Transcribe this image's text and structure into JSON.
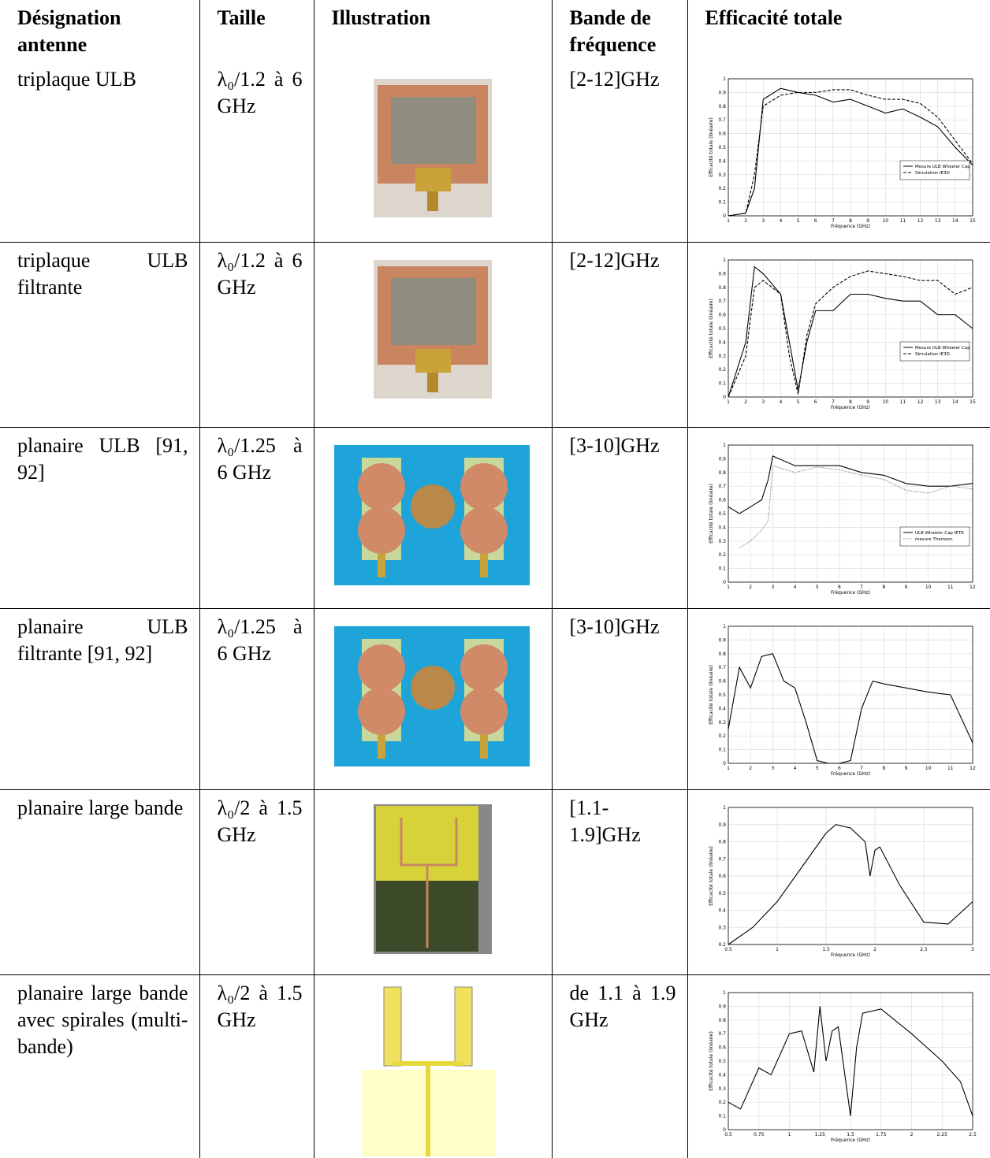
{
  "table": {
    "header": [
      "Désignation antenne",
      "Taille",
      "Illustration",
      "Bande de fréquence",
      "Efficacité totale"
    ],
    "rows": [
      {
        "designation": "triplaque ULB",
        "size": "λ₀/1.2 à 6 GHz",
        "band": "[2-12]GHz",
        "chart": {
          "type": "line",
          "xlabel": "Fréquence (GHz)",
          "ylabel": "Efficacité totale (linéaire)",
          "xlim": [
            1,
            15
          ],
          "xticks": [
            1,
            2,
            3,
            4,
            5,
            6,
            7,
            8,
            9,
            10,
            11,
            12,
            13,
            14,
            15
          ],
          "ylim": [
            0,
            1
          ],
          "yticks": [
            0,
            0.1,
            0.2,
            0.3,
            0.4,
            0.5,
            0.6,
            0.7,
            0.8,
            0.9,
            1
          ],
          "grid": true,
          "legend": "lower right",
          "x": [
            1,
            2,
            2.5,
            3,
            4,
            5,
            6,
            7,
            8,
            9,
            10,
            11,
            12,
            13,
            14,
            15
          ],
          "series": [
            {
              "name": "Mesure ULB Wheeler Cap",
              "color": "#000000",
              "dash": "solid",
              "values": [
                0,
                0.02,
                0.2,
                0.85,
                0.93,
                0.9,
                0.88,
                0.83,
                0.85,
                0.8,
                0.75,
                0.78,
                0.72,
                0.65,
                0.5,
                0.37
              ]
            },
            {
              "name": "Simulation IE3D",
              "color": "#000000",
              "dash": "dashed",
              "values": [
                0,
                0.02,
                0.3,
                0.8,
                0.88,
                0.9,
                0.9,
                0.92,
                0.92,
                0.88,
                0.85,
                0.85,
                0.82,
                0.72,
                0.55,
                0.38
              ]
            }
          ]
        }
      },
      {
        "designation": "triplaque ULB filtrante",
        "size": "λ₀/1.2 à 6 GHz",
        "band": "[2-12]GHz",
        "chart": {
          "type": "line",
          "xlabel": "Fréquence (GHz)",
          "ylabel": "Efficacité totale (linéaire)",
          "xlim": [
            1,
            15
          ],
          "xticks": [
            1,
            2,
            3,
            4,
            5,
            6,
            7,
            8,
            9,
            10,
            11,
            12,
            13,
            14,
            15
          ],
          "ylim": [
            0,
            1
          ],
          "yticks": [
            0,
            0.1,
            0.2,
            0.3,
            0.4,
            0.5,
            0.6,
            0.7,
            0.8,
            0.9,
            1
          ],
          "grid": true,
          "legend": "lower right",
          "x": [
            1,
            2,
            2.5,
            3,
            4,
            4.5,
            5,
            5.5,
            6,
            7,
            8,
            9,
            10,
            11,
            12,
            13,
            14,
            15
          ],
          "series": [
            {
              "name": "Mesure ULB Wheeler Cap",
              "color": "#000000",
              "dash": "solid",
              "values": [
                0,
                0.4,
                0.95,
                0.9,
                0.75,
                0.4,
                0.05,
                0.4,
                0.63,
                0.63,
                0.75,
                0.75,
                0.72,
                0.7,
                0.7,
                0.6,
                0.6,
                0.5
              ]
            },
            {
              "name": "Simulation IE3D",
              "color": "#000000",
              "dash": "dashed",
              "values": [
                0,
                0.3,
                0.8,
                0.85,
                0.75,
                0.3,
                0.02,
                0.45,
                0.68,
                0.8,
                0.88,
                0.92,
                0.9,
                0.88,
                0.85,
                0.85,
                0.75,
                0.8
              ]
            }
          ]
        }
      },
      {
        "designation": "planaire ULB [91, 92]",
        "size": "λ₀/1.25 à 6 GHz",
        "band": "[3-10]GHz",
        "chart": {
          "type": "line",
          "xlabel": "Fréquence (GHz)",
          "ylabel": "Efficacité totale (linéaire)",
          "xlim": [
            1,
            12
          ],
          "xticks": [
            1,
            2,
            3,
            4,
            5,
            6,
            7,
            8,
            9,
            10,
            11,
            12
          ],
          "ylim": [
            0,
            1
          ],
          "yticks": [
            0,
            0.1,
            0.2,
            0.3,
            0.4,
            0.5,
            0.6,
            0.7,
            0.8,
            0.9,
            1
          ],
          "grid": true,
          "legend": "lower right",
          "x": [
            1,
            1.5,
            2,
            2.5,
            2.8,
            3,
            4,
            5,
            6,
            7,
            8,
            9,
            10,
            11,
            12
          ],
          "series": [
            {
              "name": "ULB Wheeler Cap IETR",
              "color": "#000000",
              "dash": "solid",
              "values": [
                0.55,
                0.5,
                0.55,
                0.6,
                0.75,
                0.92,
                0.85,
                0.85,
                0.85,
                0.8,
                0.78,
                0.72,
                0.7,
                0.7,
                0.72
              ]
            },
            {
              "name": "mesure Thomson",
              "color": "#888888",
              "dash": "dotted",
              "values": [
                null,
                0.25,
                0.3,
                0.38,
                0.45,
                0.85,
                0.8,
                0.84,
                0.82,
                0.78,
                0.75,
                0.67,
                0.65,
                0.7,
                0.68
              ]
            }
          ]
        }
      },
      {
        "designation": "planaire ULB filtrante [91, 92]",
        "size": "λ₀/1.25 à 6 GHz",
        "band": "[3-10]GHz",
        "chart": {
          "type": "line",
          "xlabel": "Fréquence (GHz)",
          "ylabel": "Efficacité totale (linéaire)",
          "xlim": [
            1,
            12
          ],
          "xticks": [
            1,
            2,
            3,
            4,
            5,
            6,
            7,
            8,
            9,
            10,
            11,
            12
          ],
          "ylim": [
            0,
            1
          ],
          "yticks": [
            0,
            0.1,
            0.2,
            0.3,
            0.4,
            0.5,
            0.6,
            0.7,
            0.8,
            0.9,
            1
          ],
          "grid": true,
          "x": [
            1,
            1.5,
            2,
            2.5,
            3,
            3.5,
            4,
            4.5,
            5,
            5.5,
            6,
            6.5,
            7,
            7.5,
            8,
            9,
            10,
            11,
            12
          ],
          "series": [
            {
              "color": "#000000",
              "dash": "solid",
              "values": [
                0.25,
                0.7,
                0.55,
                0.78,
                0.8,
                0.6,
                0.55,
                0.3,
                0.02,
                0,
                0,
                0.02,
                0.4,
                0.6,
                0.58,
                0.55,
                0.52,
                0.5,
                0.15
              ]
            }
          ]
        }
      },
      {
        "designation": "planaire large bande",
        "size": "λ₀/2 à 1.5 GHz",
        "band": "[1.1-1.9]GHz",
        "chart": {
          "type": "line",
          "xlabel": "Fréquence (GHz)",
          "ylabel": "Efficacité totale (linéaire)",
          "xlim": [
            0.5,
            3
          ],
          "xticks": [
            0.5,
            1,
            1.5,
            2,
            2.5,
            3
          ],
          "ylim": [
            0.2,
            1
          ],
          "yticks": [
            0.2,
            0.3,
            0.4,
            0.5,
            0.6,
            0.7,
            0.8,
            0.9,
            1
          ],
          "grid": true,
          "x": [
            0.5,
            0.75,
            1,
            1.25,
            1.5,
            1.6,
            1.75,
            1.9,
            1.95,
            2,
            2.05,
            2.25,
            2.5,
            2.75,
            3
          ],
          "series": [
            {
              "color": "#000000",
              "dash": "solid",
              "values": [
                0.2,
                0.3,
                0.45,
                0.65,
                0.85,
                0.9,
                0.88,
                0.8,
                0.6,
                0.75,
                0.77,
                0.55,
                0.33,
                0.32,
                0.45
              ]
            }
          ]
        }
      },
      {
        "designation": "planaire large bande avec spirales (multi-bande)",
        "size": "λ₀/2 à 1.5 GHz",
        "band": "de 1.1 à 1.9 GHz",
        "chart": {
          "type": "line",
          "xlabel": "Fréquence (GHz)",
          "ylabel": "Efficacité totale (linéaire)",
          "xlim": [
            0.5,
            2.5
          ],
          "xticks": [
            0.5,
            0.75,
            1,
            1.25,
            1.5,
            1.75,
            2,
            2.25,
            2.5
          ],
          "ylim": [
            0,
            1
          ],
          "yticks": [
            0,
            0.1,
            0.2,
            0.3,
            0.4,
            0.5,
            0.6,
            0.7,
            0.8,
            0.9,
            1
          ],
          "grid": true,
          "x": [
            0.5,
            0.6,
            0.75,
            0.85,
            1,
            1.1,
            1.2,
            1.25,
            1.3,
            1.35,
            1.4,
            1.5,
            1.55,
            1.6,
            1.75,
            2,
            2.25,
            2.4,
            2.5
          ],
          "series": [
            {
              "color": "#000000",
              "dash": "solid",
              "values": [
                0.2,
                0.15,
                0.45,
                0.4,
                0.7,
                0.72,
                0.42,
                0.9,
                0.5,
                0.72,
                0.75,
                0.1,
                0.6,
                0.85,
                0.88,
                0.7,
                0.5,
                0.35,
                0.1
              ]
            }
          ]
        }
      }
    ]
  }
}
